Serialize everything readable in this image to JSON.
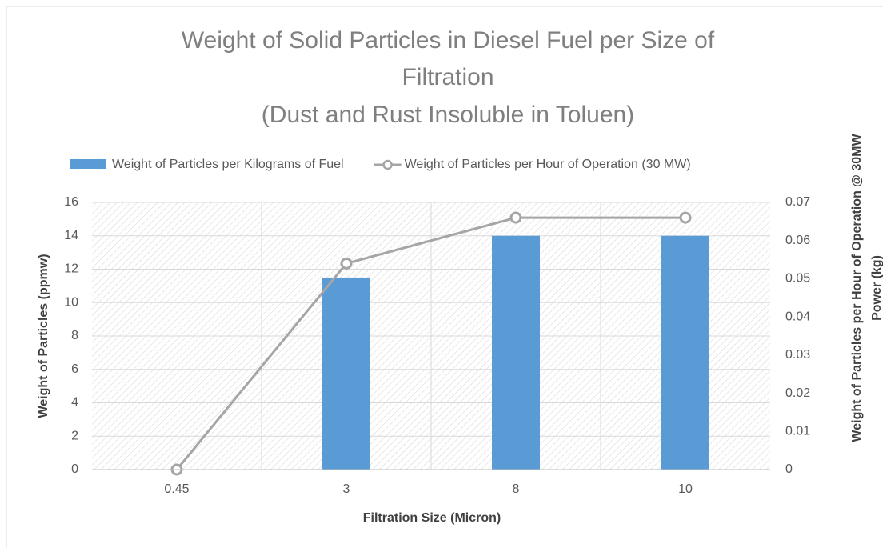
{
  "chart_data": {
    "type": "bar-line",
    "title": [
      "Weight of Solid Particles in Diesel Fuel per Size of",
      "Filtration",
      "(Dust and Rust Insoluble in Toluen)"
    ],
    "x_label": "Filtration Size (Micron)",
    "y_label": "Weight of Particles (ppmw)",
    "y2_label": [
      "Weight of Particles per Hour of Operation @ 30MW",
      "Power (kg)"
    ],
    "categories": [
      "0.45",
      "3",
      "8",
      "10"
    ],
    "series": [
      {
        "name": "Weight of Particles per Kilograms of Fuel",
        "type": "bar",
        "color": "#5b9bd5",
        "values": [
          0,
          11.5,
          14,
          14
        ]
      },
      {
        "name": "Weight of Particles per Hour of Operation (30 MW)",
        "type": "line",
        "axis": "y2",
        "color": "#a5a5a5",
        "values": [
          0,
          0.054,
          0.066,
          0.066
        ]
      }
    ],
    "ylim": [
      0,
      16
    ],
    "yticks": [
      0,
      2,
      4,
      6,
      8,
      10,
      12,
      14,
      16
    ],
    "y2lim": [
      0,
      0.07
    ],
    "y2ticks": [
      0,
      0.01,
      0.02,
      0.03,
      0.04,
      0.05,
      0.06,
      0.07
    ],
    "grid": true,
    "legend": "top"
  }
}
